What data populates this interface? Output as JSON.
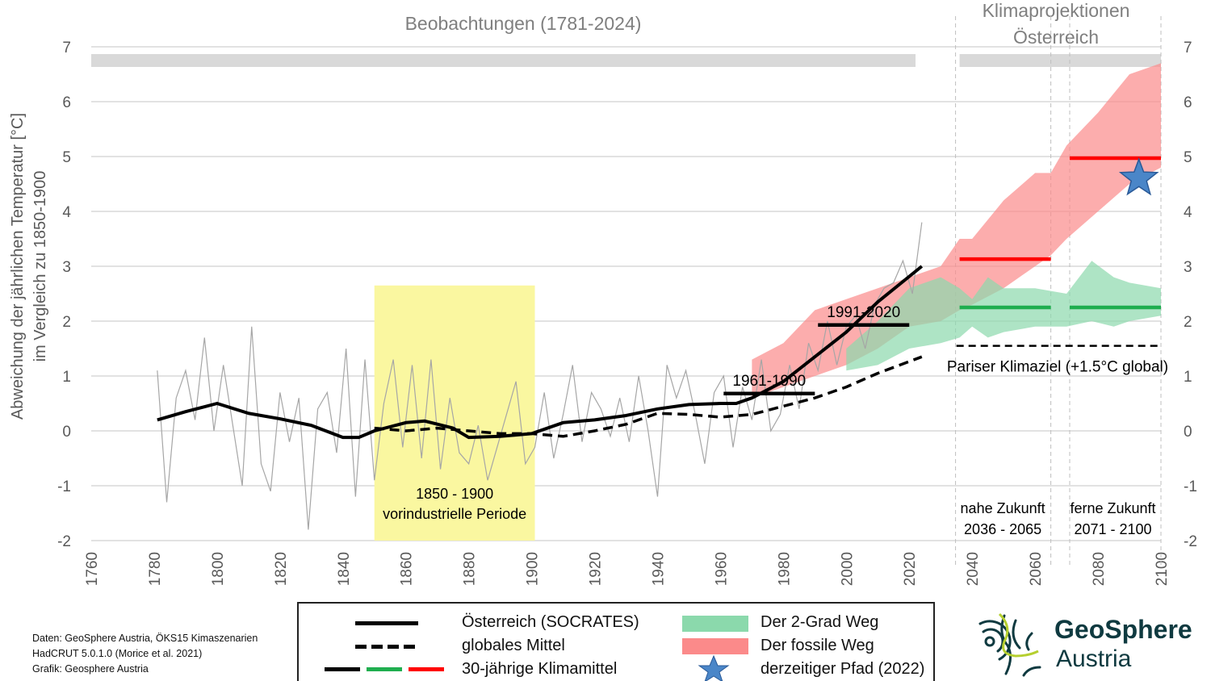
{
  "chart_data": {
    "type": "line",
    "ylabel": "Abweichung der jährlichen Temperatur [°C]\nim Vergleich zu 1850-1900",
    "ylabel_lines": [
      "Abweichung der jährlichen Temperatur [°C]",
      "im Vergleich zu 1850-1900"
    ],
    "xlim": [
      1760,
      2100
    ],
    "ylim": [
      -2,
      7
    ],
    "xticks": [
      1760,
      1780,
      1800,
      1820,
      1840,
      1860,
      1880,
      1900,
      1920,
      1940,
      1960,
      1980,
      2000,
      2020,
      2040,
      2060,
      2080,
      2100
    ],
    "yticks": [
      -2,
      -1,
      0,
      1,
      2,
      3,
      4,
      5,
      6,
      7
    ],
    "grid": true,
    "section_titles": {
      "observations": "Beobachtungen (1781-2024)",
      "projections_line1": "Klimaprojektionen",
      "projections_line2": "Österreich"
    },
    "annual_austria": {
      "x": [
        1781,
        1784,
        1787,
        1790,
        1793,
        1796,
        1799,
        1802,
        1805,
        1808,
        1811,
        1814,
        1817,
        1820,
        1823,
        1826,
        1829,
        1832,
        1835,
        1838,
        1841,
        1844,
        1847,
        1850,
        1853,
        1856,
        1859,
        1862,
        1865,
        1868,
        1871,
        1874,
        1877,
        1880,
        1883,
        1886,
        1889,
        1892,
        1895,
        1898,
        1901,
        1904,
        1907,
        1910,
        1913,
        1916,
        1919,
        1922,
        1925,
        1928,
        1931,
        1934,
        1937,
        1940,
        1943,
        1946,
        1949,
        1952,
        1955,
        1958,
        1961,
        1964,
        1967,
        1970,
        1973,
        1976,
        1979,
        1982,
        1985,
        1988,
        1991,
        1994,
        1997,
        2000,
        2003,
        2006,
        2009,
        2012,
        2015,
        2018,
        2021,
        2024
      ],
      "y": [
        1.1,
        -1.3,
        0.6,
        1.1,
        0.2,
        1.7,
        0.0,
        1.2,
        0.1,
        -1.0,
        1.9,
        -0.6,
        -1.1,
        0.7,
        -0.2,
        0.6,
        -1.8,
        0.4,
        0.7,
        -0.4,
        1.5,
        -1.2,
        1.3,
        -0.9,
        0.5,
        1.3,
        -0.3,
        1.2,
        -0.5,
        1.3,
        -0.7,
        0.6,
        -0.4,
        -0.6,
        0.1,
        -0.9,
        -0.3,
        0.3,
        0.9,
        -0.6,
        -0.3,
        0.7,
        -0.5,
        0.3,
        1.2,
        -0.2,
        0.7,
        0.4,
        -0.1,
        0.6,
        -0.2,
        1.0,
        0.0,
        -1.2,
        1.2,
        0.6,
        1.1,
        0.3,
        -0.6,
        0.7,
        1.0,
        -0.3,
        0.8,
        0.2,
        1.3,
        0.0,
        0.3,
        1.2,
        0.4,
        1.6,
        1.1,
        2.0,
        1.2,
        1.9,
        2.1,
        1.5,
        2.3,
        2.6,
        2.7,
        3.1,
        2.5,
        3.8
      ]
    },
    "series": [
      {
        "name": "Österreich (SOCRATES)",
        "style": "solid",
        "color": "#000000",
        "x": [
          1781,
          1790,
          1800,
          1810,
          1820,
          1830,
          1840,
          1845,
          1850,
          1860,
          1866,
          1875,
          1880,
          1890,
          1900,
          1910,
          1920,
          1930,
          1940,
          1950,
          1960,
          1965,
          1970,
          1980,
          1990,
          2000,
          2010,
          2024
        ],
        "y": [
          0.2,
          0.35,
          0.5,
          0.32,
          0.22,
          0.1,
          -0.12,
          -0.12,
          0.0,
          0.15,
          0.18,
          0.05,
          -0.12,
          -0.1,
          -0.05,
          0.15,
          0.2,
          0.28,
          0.4,
          0.48,
          0.5,
          0.5,
          0.6,
          0.9,
          1.35,
          1.8,
          2.35,
          3.0
        ]
      },
      {
        "name": "globales Mittel",
        "style": "dashed",
        "color": "#000000",
        "x": [
          1850,
          1860,
          1870,
          1880,
          1890,
          1900,
          1910,
          1920,
          1930,
          1940,
          1950,
          1960,
          1970,
          1980,
          1990,
          2000,
          2010,
          2024
        ],
        "y": [
          0.05,
          0.0,
          0.05,
          0.0,
          -0.05,
          -0.05,
          -0.1,
          0.0,
          0.12,
          0.32,
          0.3,
          0.25,
          0.3,
          0.45,
          0.6,
          0.8,
          1.05,
          1.35
        ]
      }
    ],
    "bands": [
      {
        "name": "Der fossile Weg",
        "color": "#fb8a8a",
        "x": [
          1970,
          1980,
          1990,
          2000,
          2010,
          2020,
          2030,
          2036,
          2040,
          2050,
          2060,
          2065,
          2070,
          2080,
          2090,
          2100
        ],
        "low": [
          0.6,
          0.8,
          1.0,
          1.2,
          1.5,
          1.9,
          2.0,
          2.2,
          2.3,
          2.6,
          3.0,
          3.2,
          3.5,
          4.0,
          4.5,
          4.8
        ],
        "high": [
          1.3,
          1.6,
          2.2,
          2.4,
          2.6,
          2.8,
          3.0,
          3.5,
          3.5,
          4.2,
          4.7,
          4.7,
          5.2,
          5.8,
          6.5,
          6.7
        ]
      },
      {
        "name": "Der 2-Grad Weg",
        "color": "#8bd9ac",
        "x": [
          2000,
          2010,
          2020,
          2030,
          2036,
          2040,
          2045,
          2050,
          2060,
          2070,
          2078,
          2085,
          2090,
          2100
        ],
        "low": [
          1.1,
          1.2,
          1.5,
          1.6,
          1.7,
          1.9,
          1.7,
          1.8,
          1.9,
          1.9,
          2.0,
          1.9,
          2.0,
          2.1
        ],
        "high": [
          1.5,
          2.0,
          2.6,
          2.8,
          2.6,
          2.4,
          2.8,
          2.6,
          2.6,
          2.5,
          3.1,
          2.8,
          2.7,
          2.6
        ]
      }
    ],
    "climate_means": [
      {
        "label": "1961-1990",
        "from": 1961,
        "to": 1990,
        "value": 0.68,
        "color": "#000000"
      },
      {
        "label": "1991-2020",
        "from": 1991,
        "to": 2020,
        "value": 1.93,
        "color": "#000000"
      },
      {
        "label": "",
        "from": 2036,
        "to": 2065,
        "value": 3.13,
        "color": "#ff0000"
      },
      {
        "label": "",
        "from": 2036,
        "to": 2065,
        "value": 2.25,
        "color": "#1fae4f"
      },
      {
        "label": "",
        "from": 2071,
        "to": 2100,
        "value": 4.97,
        "color": "#ff0000"
      },
      {
        "label": "",
        "from": 2071,
        "to": 2100,
        "value": 2.25,
        "color": "#1fae4f"
      }
    ],
    "current_path_star": {
      "x": 2093,
      "y": 4.6,
      "color": "#4a86c8"
    },
    "paris_target": {
      "label": "Pariser Klimaziel (+1.5°C global)",
      "value": 1.55,
      "from": 2035,
      "to": 2100
    },
    "reference_period": {
      "from": 1850,
      "to": 1901,
      "label1": "1850 - 1900",
      "label2": "vorindustrielle Periode",
      "color": "#faf7a0"
    },
    "future_periods": [
      {
        "label1": "nahe Zukunft",
        "label2": "2036 - 2065",
        "from": 2036,
        "to": 2065
      },
      {
        "label1": "ferne Zukunft",
        "label2": "2071 - 2100",
        "from": 2071,
        "to": 2100
      }
    ]
  },
  "legend": {
    "austria": "Österreich (SOCRATES)",
    "global": "globales Mittel",
    "means": "30-jährige Klimamittel",
    "two_degree": "Der 2-Grad Weg",
    "fossil": "Der fossile Weg",
    "current": "derzeitiger Pfad (2022)"
  },
  "credits": {
    "line1": "Daten: GeoSphere Austria, ÖKS15 Kimaszenarien",
    "line2": "HadCRUT 5.0.1.0 (Morice et al. 2021)",
    "line3": "Grafik: Geosphere Austria"
  },
  "logo": {
    "line1": "GeoSphere",
    "line2": "Austria"
  }
}
